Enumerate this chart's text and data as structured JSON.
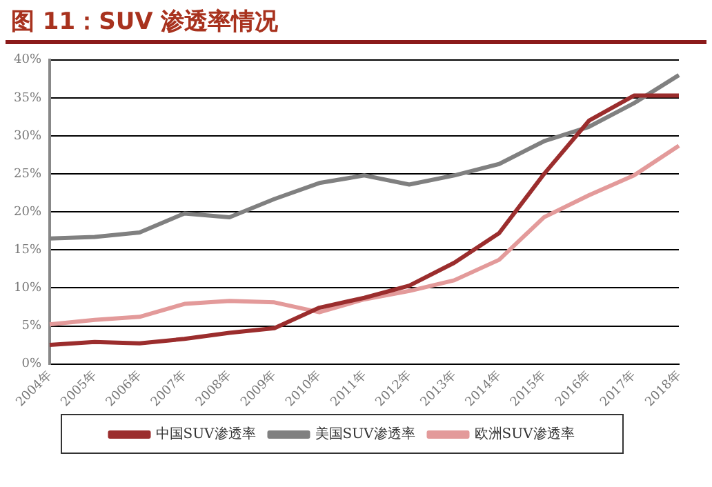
{
  "chart_data": {
    "type": "line",
    "title": "图 11：SUV 渗透率情况",
    "categories": [
      "2004年",
      "2005年",
      "2006年",
      "2007年",
      "2008年",
      "2009年",
      "2010年",
      "2011年",
      "2012年",
      "2013年",
      "2014年",
      "2015年",
      "2016年",
      "2017年",
      "2018年"
    ],
    "series": [
      {
        "name": "中国SUV渗透率",
        "color": "#9b2d2d",
        "values": [
          2.5,
          2.9,
          2.7,
          3.3,
          4.1,
          4.7,
          7.4,
          8.7,
          10.3,
          13.3,
          17.2,
          25.0,
          32.0,
          35.3,
          35.3
        ]
      },
      {
        "name": "美国SUV渗透率",
        "color": "#808080",
        "values": [
          16.5,
          16.7,
          17.3,
          19.8,
          19.3,
          21.7,
          23.8,
          24.8,
          23.6,
          24.8,
          26.3,
          29.3,
          31.2,
          34.3,
          38.0
        ]
      },
      {
        "name": "欧洲SUV渗透率",
        "color": "#e39a9a",
        "values": [
          5.2,
          5.8,
          6.2,
          7.9,
          8.3,
          8.1,
          6.8,
          8.5,
          9.6,
          11.0,
          13.7,
          19.3,
          22.2,
          24.8,
          28.7
        ]
      }
    ],
    "ylim": [
      0,
      40
    ],
    "yticks": [
      {
        "value": 0,
        "label": "0%"
      },
      {
        "value": 5,
        "label": "5%"
      },
      {
        "value": 10,
        "label": "10%"
      },
      {
        "value": 15,
        "label": "15%"
      },
      {
        "value": 20,
        "label": "20%"
      },
      {
        "value": 25,
        "label": "25%"
      },
      {
        "value": 30,
        "label": "30%"
      },
      {
        "value": 35,
        "label": "35%"
      },
      {
        "value": 40,
        "label": "40%"
      }
    ],
    "grid": "y",
    "legend": "bottom",
    "marker": "none",
    "line_style": "solid"
  }
}
